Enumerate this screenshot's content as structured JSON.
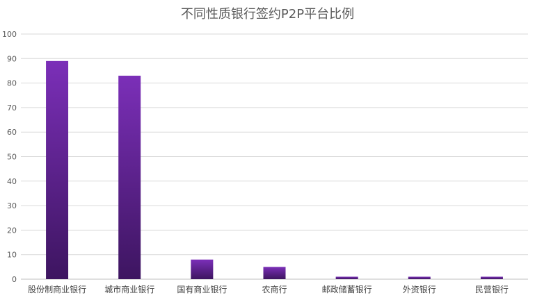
{
  "chart_data": {
    "type": "bar",
    "title": "不同性质银行签约P2P平台比例",
    "xlabel": "",
    "ylabel": "",
    "categories": [
      "股份制商业银行",
      "城市商业银行",
      "国有商业银行",
      "农商行",
      "邮政储蓄银行",
      "外资银行",
      "民营银行"
    ],
    "values": [
      89,
      83,
      8,
      5,
      1,
      1,
      1
    ],
    "ylim": [
      0,
      100
    ],
    "yticks": [
      0,
      10,
      20,
      30,
      40,
      50,
      60,
      70,
      80,
      90,
      100
    ],
    "grid": true,
    "legend": "none",
    "colors": {
      "bar_top": "#7b2fb8",
      "bar_bottom": "#3d1560",
      "grid": "#d9d9d9",
      "axis": "#bfbfbf"
    }
  }
}
